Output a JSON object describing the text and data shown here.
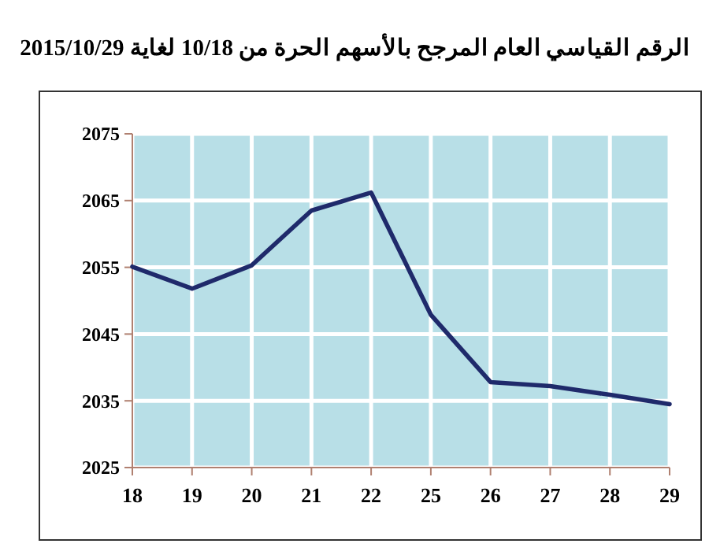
{
  "chart_data": {
    "type": "line",
    "title": "الرقم القياسي العام المرجح بالأسهم الحرة من 10/18 لغاية 2015/10/29",
    "categories": [
      "18",
      "19",
      "20",
      "21",
      "22",
      "25",
      "26",
      "27",
      "28",
      "29"
    ],
    "series": [
      {
        "color": "#1f2a6b",
        "values": [
          2055.1,
          2051.8,
          2055.3,
          2063.5,
          2066.2,
          2047.9,
          2037.8,
          2037.2,
          2035.9,
          2034.5
        ]
      }
    ],
    "ylim": [
      2025,
      2075
    ],
    "yticks": [
      2025,
      2035,
      2045,
      2055,
      2065,
      2075
    ],
    "grid": true,
    "marker": "none",
    "line_style": "solid"
  }
}
